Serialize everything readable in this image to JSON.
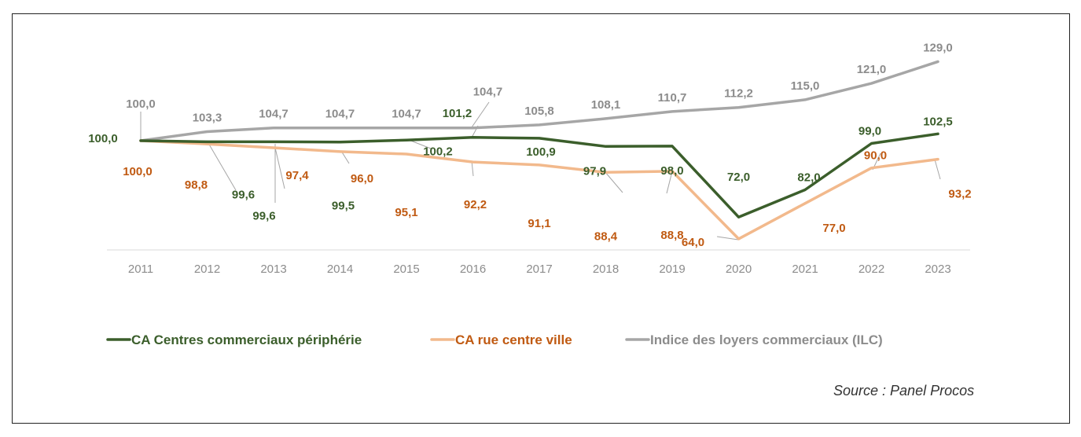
{
  "chart_data": {
    "type": "line",
    "title": "",
    "xlabel": "",
    "ylabel": "",
    "x": [
      "2011",
      "2012",
      "2013",
      "2014",
      "2015",
      "2016",
      "2017",
      "2018",
      "2019",
      "2020",
      "2021",
      "2022",
      "2023"
    ],
    "ylim": [
      60,
      132
    ],
    "grid": false,
    "legend_position": "bottom",
    "series": [
      {
        "name": "CA Centres commerciaux périphérie",
        "color": "#3b5e2b",
        "label_color": "#3b5e2b",
        "values": [
          100.0,
          99.6,
          99.6,
          99.5,
          100.2,
          101.2,
          100.9,
          97.9,
          98.0,
          72.0,
          82.0,
          99.0,
          102.5
        ],
        "labels": [
          "100,0",
          "99,6",
          "99,6",
          "99,5",
          "100,2",
          "101,2",
          "100,9",
          "97,9",
          "98,0",
          "72,0",
          "82,0",
          "99,0",
          "102,5"
        ]
      },
      {
        "name": "CA rue centre ville",
        "color": "#f2b98c",
        "label_color": "#c05a12",
        "values": [
          100.0,
          98.8,
          97.4,
          96.0,
          95.1,
          92.2,
          91.1,
          88.4,
          88.8,
          64.0,
          77.0,
          90.0,
          93.2
        ],
        "labels": [
          "100,0",
          "98,8",
          "97,4",
          "96,0",
          "95,1",
          "92,2",
          "91,1",
          "88,4",
          "88,8",
          "64,0",
          "77,0",
          "90,0",
          "93,2"
        ]
      },
      {
        "name": "Indice des loyers commerciaux (ILC)",
        "color": "#a6a6a6",
        "label_color": "#8c8c8c",
        "values": [
          100.0,
          103.3,
          104.7,
          104.7,
          104.7,
          104.7,
          105.8,
          108.1,
          110.7,
          112.2,
          115.0,
          121.0,
          129.0
        ],
        "labels": [
          "100,0",
          "103,3",
          "104,7",
          "104,7",
          "104,7",
          "104,7",
          "105,8",
          "108,1",
          "110,7",
          "112,2",
          "115,0",
          "121,0",
          "129,0"
        ]
      }
    ]
  },
  "source": "Source : Panel Procos"
}
